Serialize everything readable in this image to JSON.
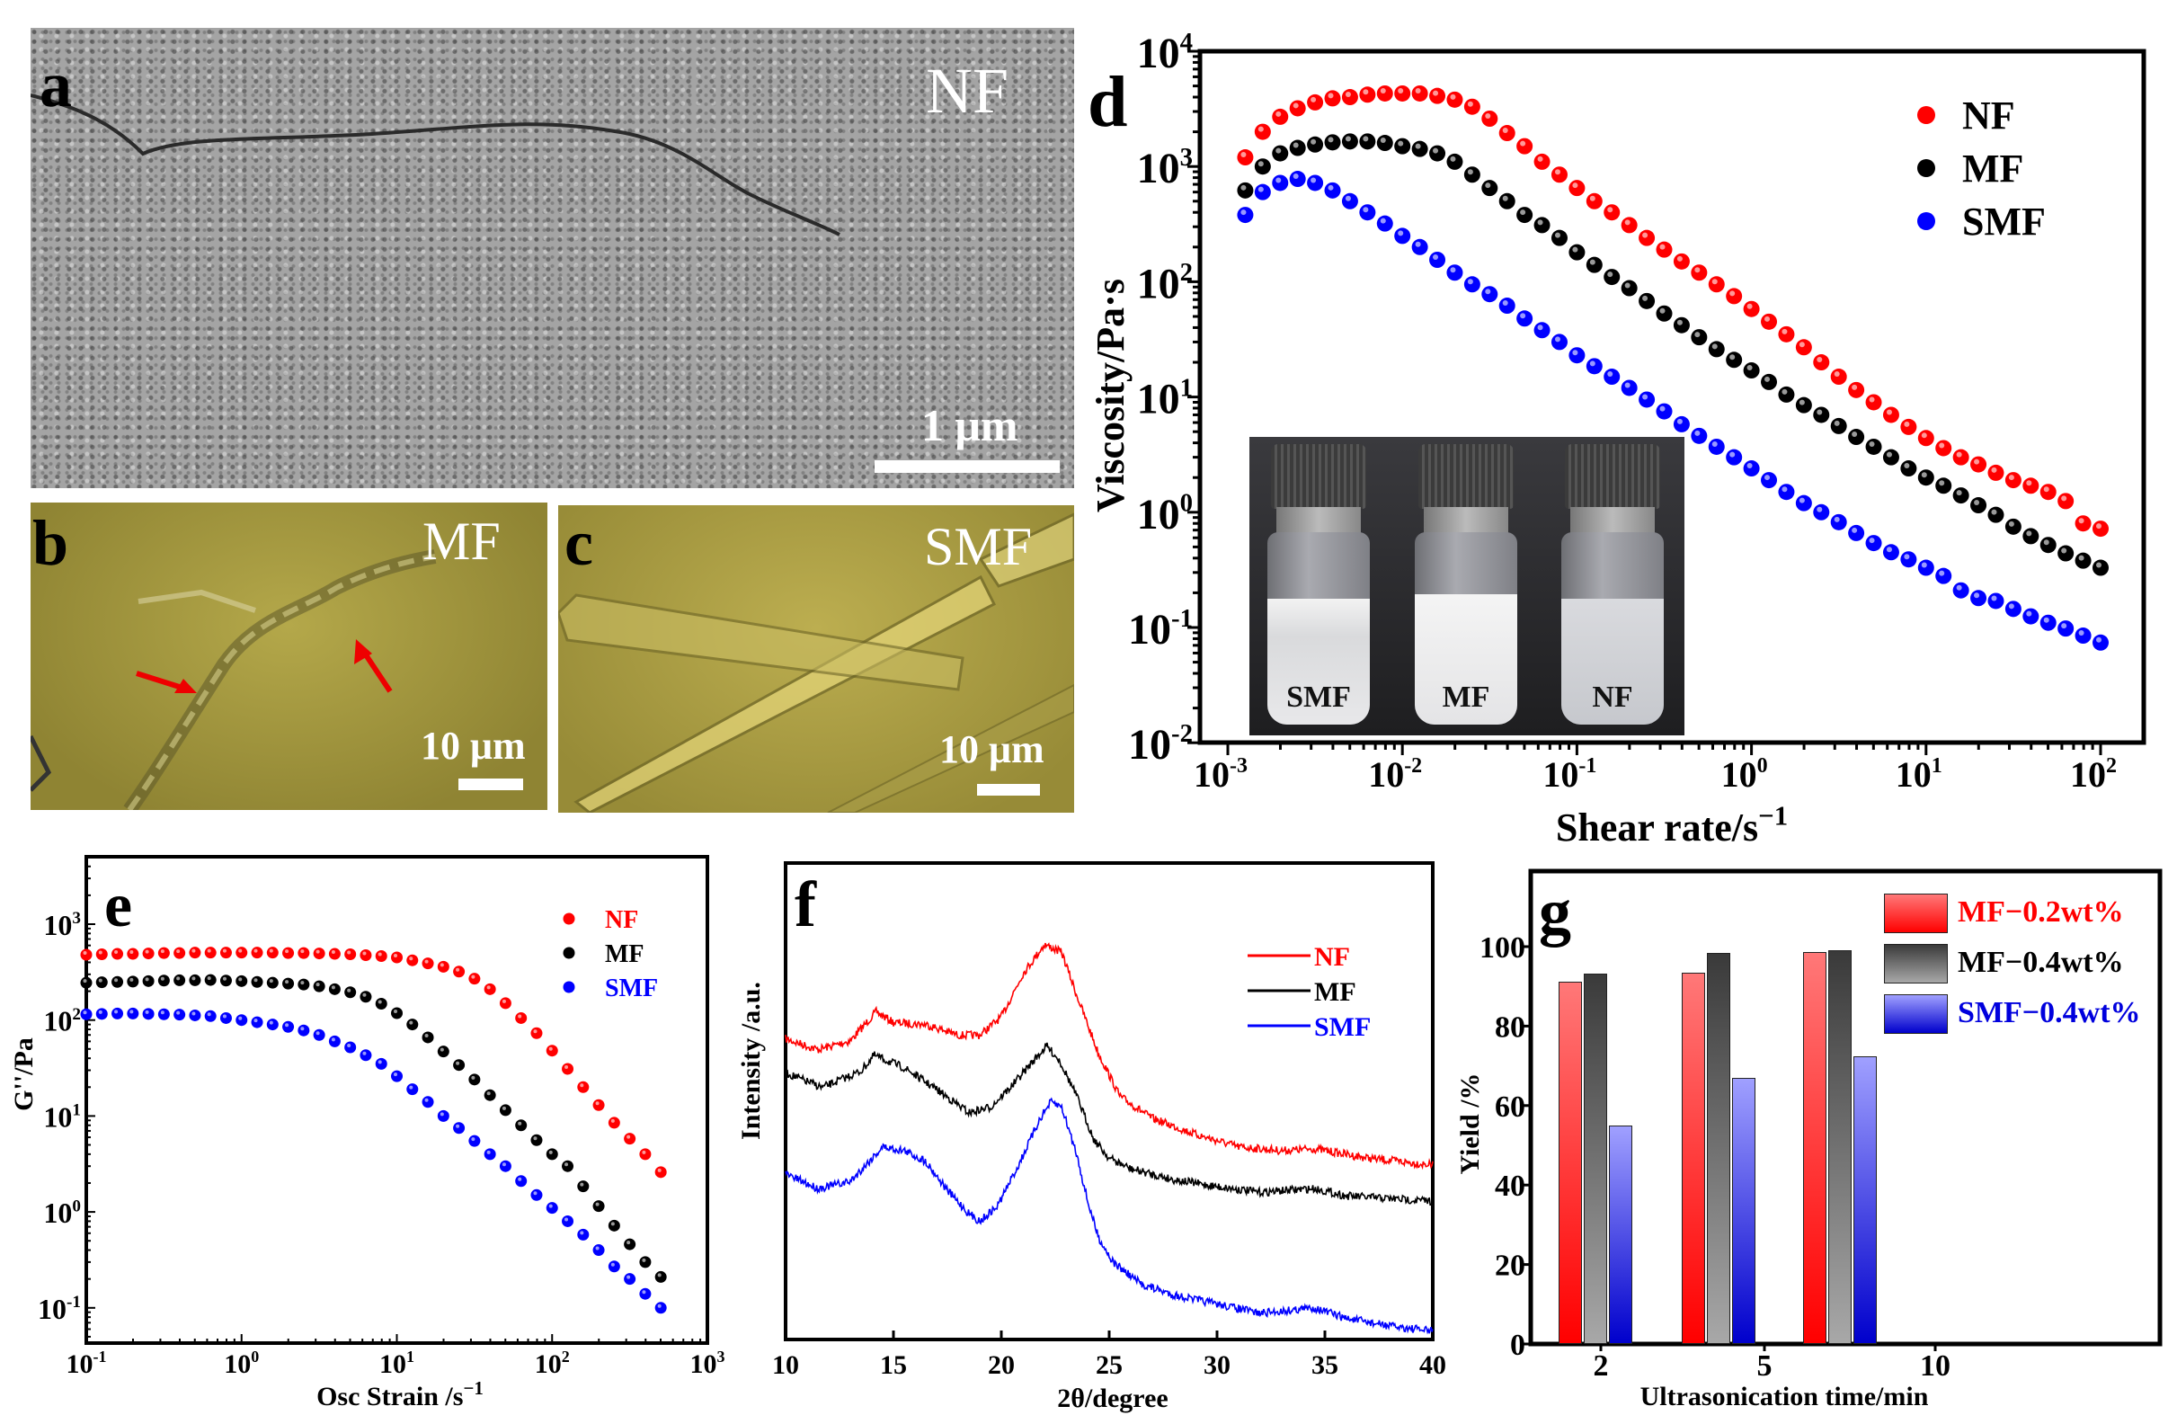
{
  "panels": {
    "a": {
      "letter": "a",
      "label": "NF",
      "scale": "1  μm"
    },
    "b": {
      "letter": "b",
      "label": "MF",
      "scale": "10 μm"
    },
    "c": {
      "letter": "c",
      "label": "SMF",
      "scale": "10 μm"
    },
    "d": {
      "letter": "d",
      "inset_labels": [
        "SMF",
        "MF",
        "NF"
      ]
    },
    "e": {
      "letter": "e"
    },
    "f": {
      "letter": "f"
    },
    "g": {
      "letter": "g"
    }
  },
  "colors": {
    "NF": "#ff0000",
    "MF": "#000000",
    "SMF": "#0000ff"
  },
  "chart_data": [
    {
      "id": "d",
      "type": "scatter",
      "xscale": "log",
      "yscale": "log",
      "xlabel": "Shear rate/s",
      "xlabel_sup": "−1",
      "ylabel": "Viscosity/Pa·s",
      "xlim": [
        0.001,
        100
      ],
      "ylim": [
        0.01,
        10000
      ],
      "x_ticks": [
        {
          "b": "10",
          "e": "-3"
        },
        {
          "b": "10",
          "e": "-2"
        },
        {
          "b": "10",
          "e": "-1"
        },
        {
          "b": "10",
          "e": "0"
        },
        {
          "b": "10",
          "e": "1"
        },
        {
          "b": "10",
          "e": "2"
        }
      ],
      "y_ticks": [
        {
          "b": "10",
          "e": "4"
        },
        {
          "b": "10",
          "e": "3"
        },
        {
          "b": "10",
          "e": "2"
        },
        {
          "b": "10",
          "e": "1"
        },
        {
          "b": "10",
          "e": "0"
        },
        {
          "b": "10",
          "e": "-1"
        },
        {
          "b": "10",
          "e": "-2"
        }
      ],
      "legend": "top-right",
      "x_start_log": -2.9,
      "x_step_log": 0.1,
      "series": [
        {
          "name": "NF",
          "values": [
            1200,
            2000,
            2700,
            3200,
            3600,
            3900,
            4000,
            4200,
            4300,
            4300,
            4300,
            4100,
            3800,
            3300,
            2600,
            1950,
            1500,
            1100,
            850,
            650,
            500,
            400,
            310,
            240,
            190,
            150,
            120,
            95,
            75,
            58,
            45,
            35,
            27,
            20,
            15,
            11.5,
            9,
            7,
            5.5,
            4.4,
            3.6,
            3.0,
            2.6,
            2.2,
            1.9,
            1.7,
            1.5,
            1.25,
            0.8,
            0.72
          ]
        },
        {
          "name": "MF",
          "values": [
            620,
            1000,
            1300,
            1450,
            1550,
            1620,
            1650,
            1650,
            1600,
            1500,
            1420,
            1300,
            1100,
            850,
            650,
            500,
            380,
            310,
            240,
            180,
            140,
            110,
            88,
            68,
            53,
            42,
            33,
            26,
            21,
            17,
            13.5,
            10.5,
            8.5,
            7,
            5.6,
            4.5,
            3.7,
            3.0,
            2.4,
            2.0,
            1.7,
            1.4,
            1.15,
            0.95,
            0.75,
            0.62,
            0.52,
            0.44,
            0.38,
            0.33
          ]
        },
        {
          "name": "SMF",
          "values": [
            380,
            600,
            720,
            780,
            720,
            620,
            500,
            400,
            320,
            250,
            200,
            155,
            120,
            95,
            78,
            62,
            48,
            38,
            30,
            23,
            18.5,
            15,
            12,
            9.5,
            7.5,
            5.8,
            4.6,
            3.7,
            3.0,
            2.4,
            1.9,
            1.5,
            1.2,
            1.0,
            0.82,
            0.66,
            0.54,
            0.45,
            0.39,
            0.33,
            0.28,
            0.21,
            0.18,
            0.17,
            0.145,
            0.125,
            0.11,
            0.098,
            0.085,
            0.074
          ]
        }
      ]
    },
    {
      "id": "e",
      "type": "scatter",
      "xscale": "log",
      "yscale": "log",
      "xlabel": "Osc Strain /s",
      "xlabel_sup": "−1",
      "ylabel": "G''/Pa",
      "xlim": [
        0.1,
        1000
      ],
      "ylim": [
        0.05,
        5000
      ],
      "x_ticks": [
        {
          "b": "10",
          "e": "-1"
        },
        {
          "b": "10",
          "e": "0"
        },
        {
          "b": "10",
          "e": "1"
        },
        {
          "b": "10",
          "e": "2"
        },
        {
          "b": "10",
          "e": "3"
        }
      ],
      "y_ticks": [
        {
          "b": "10",
          "e": "3"
        },
        {
          "b": "10",
          "e": "2"
        },
        {
          "b": "10",
          "e": "1"
        },
        {
          "b": "10",
          "e": "0"
        },
        {
          "b": "10",
          "e": "-1"
        }
      ],
      "legend": "top-right",
      "x_start_log": -1,
      "x_step_log": 0.1,
      "series": [
        {
          "name": "NF",
          "values": [
            480,
            485,
            490,
            490,
            495,
            500,
            500,
            505,
            505,
            505,
            505,
            505,
            505,
            500,
            500,
            495,
            490,
            485,
            475,
            465,
            450,
            420,
            390,
            360,
            320,
            270,
            210,
            150,
            105,
            73,
            48,
            31,
            20,
            13,
            8.5,
            5.8,
            4.0,
            2.6
          ]
        },
        {
          "name": "MF",
          "values": [
            245,
            248,
            250,
            252,
            255,
            258,
            260,
            260,
            262,
            258,
            255,
            250,
            245,
            240,
            235,
            225,
            210,
            195,
            175,
            148,
            118,
            90,
            66,
            47,
            34,
            24,
            16.5,
            11.5,
            8,
            5.6,
            4.0,
            3.0,
            1.85,
            1.15,
            0.72,
            0.46,
            0.3,
            0.21
          ]
        },
        {
          "name": "SMF",
          "values": [
            115,
            116,
            117,
            117,
            116,
            115,
            114,
            112,
            110,
            105,
            100,
            95,
            90,
            85,
            78,
            70,
            60,
            52,
            43,
            35,
            26,
            19,
            14,
            10,
            7.5,
            5.5,
            4.0,
            3.0,
            2.1,
            1.5,
            1.1,
            0.8,
            0.58,
            0.4,
            0.27,
            0.2,
            0.14,
            0.1
          ]
        }
      ]
    },
    {
      "id": "f",
      "type": "line",
      "xlabel": "2θ/degree",
      "ylabel": "Intensity /a.u.",
      "xlim": [
        10,
        40
      ],
      "ylim": [
        0,
        100
      ],
      "x_ticks": [
        "10",
        "15",
        "20",
        "25",
        "30",
        "35",
        "40"
      ],
      "legend": "top-right",
      "series": [
        {
          "name": "NF",
          "x": [
            10,
            11.5,
            13,
            14.2,
            15,
            16.5,
            18,
            19,
            20,
            21,
            22,
            22.8,
            23.5,
            24.5,
            25.5,
            27,
            29,
            31,
            33,
            34.5,
            37,
            40
          ],
          "values": [
            64.3,
            62,
            63.9,
            70.1,
            67.8,
            67.4,
            65.1,
            65.1,
            69,
            78.2,
            84.5,
            82.8,
            73.6,
            61.2,
            52,
            47.3,
            43.9,
            41.2,
            40.4,
            40.8,
            38.8,
            37.3
          ]
        },
        {
          "name": "MF",
          "x": [
            10,
            11.7,
            13.5,
            14.1,
            15.5,
            17,
            18.5,
            19.5,
            20.5,
            21.5,
            22.1,
            22.7,
            23.5,
            24.3,
            25,
            26,
            28,
            30,
            32,
            34.5,
            36,
            40
          ],
          "values": [
            57,
            53.9,
            57.4,
            60.8,
            58.1,
            53.5,
            48.5,
            49.7,
            54.3,
            59.7,
            62.8,
            59.7,
            52,
            42.7,
            38.8,
            36.5,
            34.2,
            32.7,
            31.5,
            32.3,
            30.7,
            29.6
          ]
        },
        {
          "name": "SMF",
          "x": [
            10,
            11.5,
            13,
            14.5,
            15.5,
            16.5,
            17.5,
            18.5,
            19,
            19.8,
            20.8,
            21.8,
            22.3,
            22.8,
            23.5,
            24,
            24.5,
            25.2,
            26.5,
            28,
            30,
            32,
            34.5,
            36,
            38,
            40
          ],
          "values": [
            35.4,
            32.3,
            33.8,
            41.2,
            40.4,
            38.1,
            31.9,
            26.9,
            25.3,
            28.4,
            37.3,
            47.3,
            50.8,
            49.7,
            39.6,
            29.6,
            21.9,
            16.4,
            11.8,
            9.5,
            7.6,
            5.6,
            6.8,
            4.5,
            2.9,
            1.8
          ]
        }
      ]
    },
    {
      "id": "g",
      "type": "bar",
      "xlabel": "Ultrasonication time/min",
      "ylabel": "Yield /%",
      "categories": [
        "2",
        "5",
        "10"
      ],
      "ylim": [
        0,
        119
      ],
      "y_ticks": [
        "0",
        "20",
        "40",
        "60",
        "80",
        "100"
      ],
      "legend": "top-right",
      "series": [
        {
          "name": "MF−0.2wt%",
          "values": [
            91.2,
            93.4,
            98.6
          ],
          "color": "#ff0000"
        },
        {
          "name": "MF−0.4wt%",
          "values": [
            93.1,
            98.5,
            99.2
          ],
          "color": "#404040"
        },
        {
          "name": "SMF−0.4wt%",
          "values": [
            55.0,
            66.9,
            72.4
          ],
          "color": "#0000dd"
        }
      ]
    }
  ]
}
